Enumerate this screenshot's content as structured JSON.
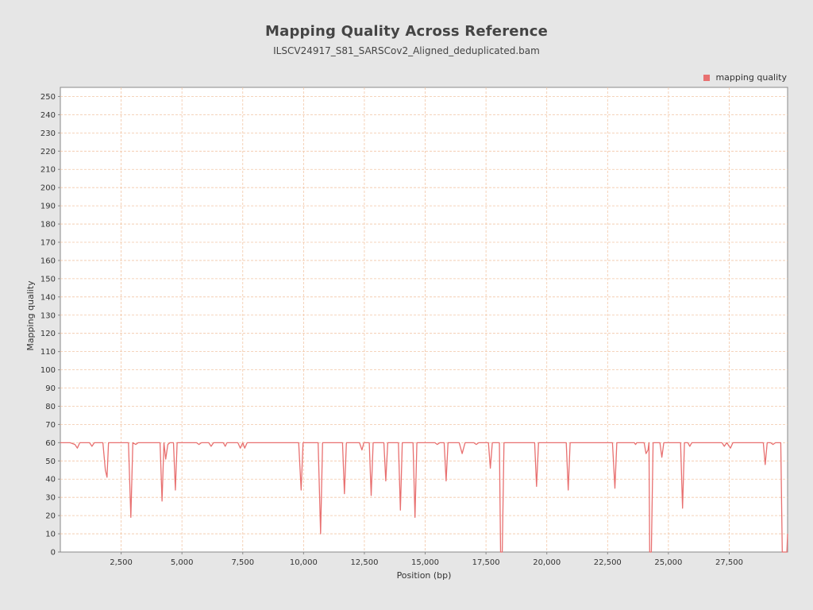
{
  "chart_data": {
    "type": "line",
    "title": "Mapping Quality Across Reference",
    "subtitle": "ILSCV24917_S81_SARSCov2_Aligned_deduplicated.bam",
    "xlabel": "Position (bp)",
    "ylabel": "Mapping quality",
    "xlim": [
      0,
      29900
    ],
    "ylim": [
      0,
      255
    ],
    "x_ticks": [
      2500,
      5000,
      7500,
      10000,
      12500,
      15000,
      17500,
      20000,
      22500,
      25000,
      27500
    ],
    "x_tick_labels": [
      "2,500",
      "5,000",
      "7,500",
      "10,000",
      "12,500",
      "15,000",
      "17,500",
      "20,000",
      "22,500",
      "25,000",
      "27,500"
    ],
    "y_ticks": [
      0,
      10,
      20,
      30,
      40,
      50,
      60,
      70,
      80,
      90,
      100,
      110,
      120,
      130,
      140,
      150,
      160,
      170,
      180,
      190,
      200,
      210,
      220,
      230,
      240,
      250
    ],
    "grid": true,
    "legend_position": "top-right",
    "series": [
      {
        "name": "mapping quality",
        "color": "#e87070",
        "points": [
          [
            0,
            60
          ],
          [
            400,
            60
          ],
          [
            600,
            59
          ],
          [
            700,
            57
          ],
          [
            800,
            60
          ],
          [
            1200,
            60
          ],
          [
            1300,
            58
          ],
          [
            1400,
            60
          ],
          [
            1750,
            60
          ],
          [
            1850,
            45
          ],
          [
            1920,
            41
          ],
          [
            1980,
            60
          ],
          [
            2800,
            60
          ],
          [
            2900,
            19
          ],
          [
            2980,
            60
          ],
          [
            3100,
            59
          ],
          [
            3200,
            60
          ],
          [
            4100,
            60
          ],
          [
            4180,
            28
          ],
          [
            4260,
            60
          ],
          [
            4330,
            51
          ],
          [
            4420,
            59
          ],
          [
            4500,
            60
          ],
          [
            4650,
            60
          ],
          [
            4730,
            34
          ],
          [
            4800,
            60
          ],
          [
            5600,
            60
          ],
          [
            5700,
            59
          ],
          [
            5800,
            60
          ],
          [
            6100,
            60
          ],
          [
            6200,
            58
          ],
          [
            6300,
            60
          ],
          [
            6700,
            60
          ],
          [
            6780,
            58
          ],
          [
            6850,
            60
          ],
          [
            7300,
            60
          ],
          [
            7400,
            57
          ],
          [
            7500,
            60
          ],
          [
            7580,
            57
          ],
          [
            7680,
            60
          ],
          [
            9800,
            60
          ],
          [
            9900,
            34
          ],
          [
            9980,
            60
          ],
          [
            10600,
            60
          ],
          [
            10700,
            10
          ],
          [
            10780,
            60
          ],
          [
            11600,
            60
          ],
          [
            11680,
            32
          ],
          [
            11760,
            60
          ],
          [
            12300,
            60
          ],
          [
            12400,
            56
          ],
          [
            12480,
            60
          ],
          [
            12700,
            60
          ],
          [
            12780,
            31
          ],
          [
            12860,
            60
          ],
          [
            13300,
            60
          ],
          [
            13380,
            39
          ],
          [
            13460,
            60
          ],
          [
            13900,
            60
          ],
          [
            13980,
            23
          ],
          [
            14060,
            60
          ],
          [
            14500,
            60
          ],
          [
            14580,
            19
          ],
          [
            14660,
            60
          ],
          [
            15400,
            60
          ],
          [
            15500,
            59
          ],
          [
            15600,
            60
          ],
          [
            15780,
            60
          ],
          [
            15860,
            39
          ],
          [
            15940,
            60
          ],
          [
            16400,
            60
          ],
          [
            16520,
            54
          ],
          [
            16640,
            60
          ],
          [
            17000,
            60
          ],
          [
            17100,
            59
          ],
          [
            17200,
            60
          ],
          [
            17600,
            60
          ],
          [
            17680,
            46
          ],
          [
            17760,
            60
          ],
          [
            18050,
            60
          ],
          [
            18100,
            0
          ],
          [
            18170,
            0
          ],
          [
            18240,
            60
          ],
          [
            19500,
            60
          ],
          [
            19580,
            36
          ],
          [
            19660,
            60
          ],
          [
            20800,
            60
          ],
          [
            20880,
            34
          ],
          [
            20960,
            60
          ],
          [
            22700,
            60
          ],
          [
            22800,
            35
          ],
          [
            22880,
            60
          ],
          [
            23600,
            60
          ],
          [
            23650,
            59
          ],
          [
            23700,
            60
          ],
          [
            24000,
            60
          ],
          [
            24080,
            54
          ],
          [
            24160,
            56
          ],
          [
            24200,
            60
          ],
          [
            24230,
            0
          ],
          [
            24300,
            0
          ],
          [
            24370,
            60
          ],
          [
            24650,
            60
          ],
          [
            24730,
            52
          ],
          [
            24810,
            60
          ],
          [
            25500,
            60
          ],
          [
            25580,
            24
          ],
          [
            25660,
            60
          ],
          [
            25800,
            60
          ],
          [
            25880,
            58
          ],
          [
            25960,
            60
          ],
          [
            27200,
            60
          ],
          [
            27300,
            58
          ],
          [
            27400,
            60
          ],
          [
            27550,
            57
          ],
          [
            27650,
            60
          ],
          [
            28900,
            60
          ],
          [
            28980,
            48
          ],
          [
            29060,
            60
          ],
          [
            29200,
            60
          ],
          [
            29300,
            59
          ],
          [
            29400,
            60
          ],
          [
            29620,
            60
          ],
          [
            29680,
            0
          ],
          [
            29870,
            0
          ],
          [
            29900,
            10
          ]
        ]
      }
    ]
  }
}
